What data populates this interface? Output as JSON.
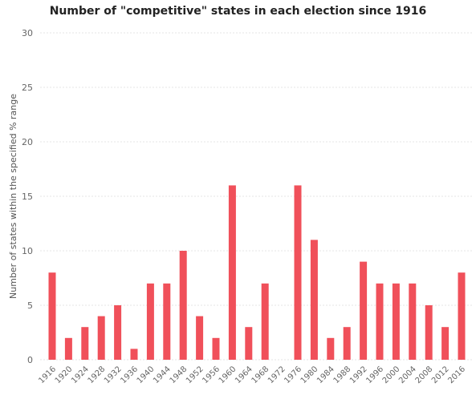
{
  "chart_data": {
    "type": "bar",
    "title": "Number of \"competitive\" states in each election since 1916",
    "xlabel": "",
    "ylabel": "Number of states within the specified % range",
    "ylim": [
      0,
      30
    ],
    "yticks": [
      0,
      5,
      10,
      15,
      20,
      25,
      30
    ],
    "grid": true,
    "categories": [
      "1916",
      "1920",
      "1924",
      "1928",
      "1932",
      "1936",
      "1940",
      "1944",
      "1948",
      "1952",
      "1956",
      "1960",
      "1964",
      "1968",
      "1972",
      "1976",
      "1980",
      "1984",
      "1988",
      "1992",
      "1996",
      "2000",
      "2004",
      "2008",
      "2012",
      "2016"
    ],
    "values": [
      8,
      2,
      3,
      4,
      5,
      1,
      7,
      7,
      10,
      4,
      2,
      16,
      3,
      7,
      0,
      16,
      11,
      2,
      3,
      9,
      7,
      7,
      7,
      5,
      3,
      8
    ],
    "colors": {
      "bar": "#f0505a",
      "grid": "#e4e4e4",
      "text": "#666666"
    }
  }
}
